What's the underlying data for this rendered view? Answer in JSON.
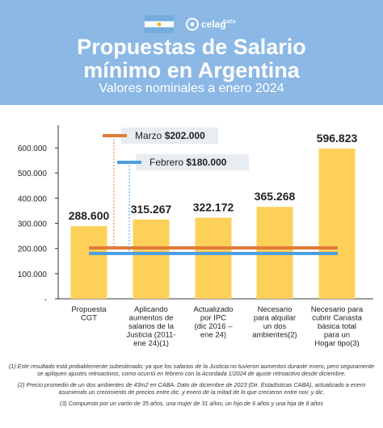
{
  "header": {
    "title_line1": "Propuestas de Salario",
    "title_line2": "mínimo en Argentina",
    "subtitle": "Valores nominales a enero 2024",
    "brand_name": "celag",
    "brand_sub": "DATA",
    "bg_color": "#8cb8e6"
  },
  "icons": {
    "flag": "argentina-flag-icon",
    "logo": "celag-logo-icon"
  },
  "chart_data": {
    "type": "bar",
    "categories": [
      [
        "Propuesta",
        "CGT"
      ],
      [
        "Aplicando",
        "aumentos de",
        "salarios de la",
        "Justicia (2011-",
        "ene 24)(1)"
      ],
      [
        "Actualizado",
        "por IPC",
        "(dic 2016 –",
        "ene 24)"
      ],
      [
        "Necesario",
        "para alquilar",
        "un dos",
        "ambientes(2)"
      ],
      [
        "Necesario para",
        "cubrir Canasta",
        "básica total",
        "para un",
        "Hogar tipo(3)"
      ]
    ],
    "values": [
      288600,
      315267,
      322172,
      365268,
      596823
    ],
    "value_labels": [
      "288.600",
      "315.267",
      "322.172",
      "365.268",
      "596.823"
    ],
    "yticks": [
      0,
      100000,
      200000,
      300000,
      400000,
      500000,
      600000
    ],
    "ytick_labels": [
      "-",
      "100.000",
      "200.000",
      "300.000",
      "400.000",
      "500.000",
      "600.000"
    ],
    "ylim": [
      0,
      690000
    ],
    "reference_lines": [
      {
        "label": "Marzo",
        "value_text": "$202.000",
        "value": 202000,
        "color": "#e07b39"
      },
      {
        "label": "Febrero",
        "value_text": "$180.000",
        "value": 180000,
        "color": "#4a9de0"
      }
    ],
    "bar_color": "#fdd05a",
    "grid": false,
    "xlabel": "",
    "ylabel": ""
  },
  "footnotes": [
    "(1) Este resultado está probablemente subestimado, ya que los salarios de la Justicia no tuvieron aumentos durante enero, pero seguramente se apliquen ajustes retroactivos, como ocurrió en febrero con la Acordada 1/2024 de ajuste retroactivo desde diciembre.",
    "(2) Precio promedio de un dos ambientes de 43m2 en CABA. Dato de diciembre de 2023 (Dir. Estadísticas CABA), actualizado a enero asumiendo un crecimiento de precios entre dic. y enero de la mitad de lo que crecieron entre nov. y dic.",
    "(3) Compuesto por un varón de 35 años, una mujer de 31 años, un hijo de 6 años y una hija de 8 años"
  ]
}
